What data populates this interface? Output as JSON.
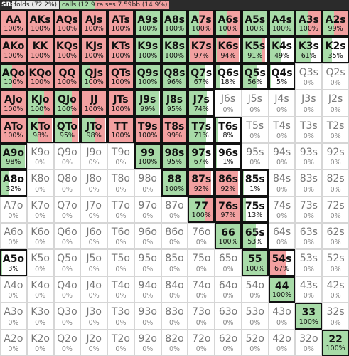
{
  "header": {
    "position": "SB:",
    "folds": "folds (72.2%)",
    "calls": "calls (12.9%)",
    "raises": "raises 7.59bb (14.9%)"
  },
  "colors": {
    "call": "#a8dba8",
    "raise": "#f2a0a0",
    "fold": "#ffffff",
    "border": "#d6d6d6",
    "highlight_border": "#111111"
  },
  "rows": [
    [
      {
        "hand": "AA",
        "label": "100%",
        "raise": 1,
        "call": 0
      },
      {
        "hand": "AKs",
        "label": "100%",
        "raise": 1,
        "call": 0
      },
      {
        "hand": "AQs",
        "label": "100%",
        "raise": 1,
        "call": 0
      },
      {
        "hand": "AJs",
        "label": "100%",
        "raise": 1,
        "call": 0
      },
      {
        "hand": "ATs",
        "label": "100%",
        "raise": 1,
        "call": 0
      },
      {
        "hand": "A9s",
        "label": "100%",
        "raise": 0,
        "call": 1
      },
      {
        "hand": "A8s",
        "label": "100%",
        "raise": 0,
        "call": 1
      },
      {
        "hand": "A7s",
        "label": "100%",
        "raise": 0.6,
        "call": 0.4
      },
      {
        "hand": "A6s",
        "label": "100%",
        "raise": 0.55,
        "call": 0.45
      },
      {
        "hand": "A5s",
        "label": "100%",
        "raise": 0,
        "call": 1
      },
      {
        "hand": "A4s",
        "label": "100%",
        "raise": 0,
        "call": 1
      },
      {
        "hand": "A3s",
        "label": "100%",
        "raise": 0.5,
        "call": 0.5
      },
      {
        "hand": "A2s",
        "label": "99%",
        "raise": 0.55,
        "call": 0.44
      }
    ],
    [
      {
        "hand": "AKo",
        "label": "100%",
        "raise": 1,
        "call": 0
      },
      {
        "hand": "KK",
        "label": "100%",
        "raise": 1,
        "call": 0
      },
      {
        "hand": "KQs",
        "label": "100%",
        "raise": 1,
        "call": 0
      },
      {
        "hand": "KJs",
        "label": "100%",
        "raise": 1,
        "call": 0
      },
      {
        "hand": "KTs",
        "label": "100%",
        "raise": 1,
        "call": 0
      },
      {
        "hand": "K9s",
        "label": "100%",
        "raise": 0,
        "call": 1
      },
      {
        "hand": "K8s",
        "label": "100%",
        "raise": 0,
        "call": 1
      },
      {
        "hand": "K7s",
        "label": "97%",
        "raise": 0.95,
        "call": 0.02
      },
      {
        "hand": "K6s",
        "label": "94%",
        "raise": 0.9,
        "call": 0.04
      },
      {
        "hand": "K5s",
        "label": "91%",
        "raise": 0.1,
        "call": 0.81
      },
      {
        "hand": "K4s",
        "label": "49%",
        "raise": 0,
        "call": 0.49
      },
      {
        "hand": "K3s",
        "label": "61%",
        "raise": 0,
        "call": 0.61
      },
      {
        "hand": "K2s",
        "label": "35%",
        "raise": 0,
        "call": 0.35
      }
    ],
    [
      {
        "hand": "AQo",
        "label": "100%",
        "raise": 0.55,
        "call": 0.45
      },
      {
        "hand": "KQo",
        "label": "100%",
        "raise": 1,
        "call": 0
      },
      {
        "hand": "QQ",
        "label": "100%",
        "raise": 1,
        "call": 0
      },
      {
        "hand": "QJs",
        "label": "100%",
        "raise": 0.65,
        "call": 0.35
      },
      {
        "hand": "QTs",
        "label": "100%",
        "raise": 1,
        "call": 0
      },
      {
        "hand": "Q9s",
        "label": "100%",
        "raise": 0,
        "call": 1
      },
      {
        "hand": "Q8s",
        "label": "96%",
        "raise": 0,
        "call": 0.96
      },
      {
        "hand": "Q7s",
        "label": "67%",
        "raise": 0,
        "call": 0.67
      },
      {
        "hand": "Q6s",
        "label": "18%",
        "raise": 0,
        "call": 0.18
      },
      {
        "hand": "Q5s",
        "label": "56%",
        "raise": 0,
        "call": 0.56
      },
      {
        "hand": "Q4s",
        "label": "5%",
        "raise": 0,
        "call": 0.05
      },
      {
        "hand": "Q3s",
        "label": "0%",
        "raise": 0,
        "call": 0
      },
      {
        "hand": "Q2s",
        "label": "0%",
        "raise": 0,
        "call": 0
      }
    ],
    [
      {
        "hand": "AJo",
        "label": "100%",
        "raise": 1,
        "call": 0
      },
      {
        "hand": "KJo",
        "label": "100%",
        "raise": 0.35,
        "call": 0.65
      },
      {
        "hand": "QJo",
        "label": "100%",
        "raise": 0.3,
        "call": 0.7
      },
      {
        "hand": "JJ",
        "label": "100%",
        "raise": 1,
        "call": 0
      },
      {
        "hand": "JTs",
        "label": "100%",
        "raise": 1,
        "call": 0
      },
      {
        "hand": "J9s",
        "label": "99%",
        "raise": 0,
        "call": 0.99
      },
      {
        "hand": "J8s",
        "label": "95%",
        "raise": 0,
        "call": 0.95
      },
      {
        "hand": "J7s",
        "label": "74%",
        "raise": 0,
        "call": 0.74
      },
      {
        "hand": "J6s",
        "label": "0%",
        "raise": 0,
        "call": 0
      },
      {
        "hand": "J5s",
        "label": "0%",
        "raise": 0,
        "call": 0
      },
      {
        "hand": "J4s",
        "label": "0%",
        "raise": 0,
        "call": 0
      },
      {
        "hand": "J3s",
        "label": "0%",
        "raise": 0,
        "call": 0
      },
      {
        "hand": "J2s",
        "label": "0%",
        "raise": 0,
        "call": 0
      }
    ],
    [
      {
        "hand": "ATo",
        "label": "100%",
        "raise": 1,
        "call": 0
      },
      {
        "hand": "KTo",
        "label": "98%",
        "raise": 0.6,
        "call": 0.38
      },
      {
        "hand": "QTo",
        "label": "95%",
        "raise": 0.25,
        "call": 0.7
      },
      {
        "hand": "JTo",
        "label": "98%",
        "raise": 0.45,
        "call": 0.53
      },
      {
        "hand": "TT",
        "label": "100%",
        "raise": 1,
        "call": 0
      },
      {
        "hand": "T9s",
        "label": "100%",
        "raise": 1,
        "call": 0
      },
      {
        "hand": "T8s",
        "label": "99%",
        "raise": 0.99,
        "call": 0
      },
      {
        "hand": "T7s",
        "label": "71%",
        "raise": 0,
        "call": 0.71
      },
      {
        "hand": "T6s",
        "label": "8%",
        "raise": 0,
        "call": 0.08
      },
      {
        "hand": "T5s",
        "label": "0%",
        "raise": 0,
        "call": 0
      },
      {
        "hand": "T4s",
        "label": "0%",
        "raise": 0,
        "call": 0
      },
      {
        "hand": "T3s",
        "label": "0%",
        "raise": 0,
        "call": 0
      },
      {
        "hand": "T2s",
        "label": "0%",
        "raise": 0,
        "call": 0
      }
    ],
    [
      {
        "hand": "A9o",
        "label": "98%",
        "raise": 0,
        "call": 0.98
      },
      {
        "hand": "K9o",
        "label": "0%",
        "raise": 0,
        "call": 0
      },
      {
        "hand": "Q9o",
        "label": "0%",
        "raise": 0,
        "call": 0
      },
      {
        "hand": "J9o",
        "label": "0%",
        "raise": 0,
        "call": 0
      },
      {
        "hand": "T9o",
        "label": "0%",
        "raise": 0,
        "call": 0
      },
      {
        "hand": "99",
        "label": "100%",
        "raise": 0,
        "call": 1
      },
      {
        "hand": "98s",
        "label": "95%",
        "raise": 0,
        "call": 0.95
      },
      {
        "hand": "97s",
        "label": "67%",
        "raise": 0,
        "call": 0.67
      },
      {
        "hand": "96s",
        "label": "1%",
        "raise": 0,
        "call": 0.01
      },
      {
        "hand": "95s",
        "label": "0%",
        "raise": 0,
        "call": 0
      },
      {
        "hand": "94s",
        "label": "0%",
        "raise": 0,
        "call": 0
      },
      {
        "hand": "93s",
        "label": "0%",
        "raise": 0,
        "call": 0
      },
      {
        "hand": "92s",
        "label": "0%",
        "raise": 0,
        "call": 0
      }
    ],
    [
      {
        "hand": "A8o",
        "label": "32%",
        "raise": 0,
        "call": 0.32
      },
      {
        "hand": "K8o",
        "label": "0%",
        "raise": 0,
        "call": 0
      },
      {
        "hand": "Q8o",
        "label": "0%",
        "raise": 0,
        "call": 0
      },
      {
        "hand": "J8o",
        "label": "0%",
        "raise": 0,
        "call": 0
      },
      {
        "hand": "T8o",
        "label": "0%",
        "raise": 0,
        "call": 0
      },
      {
        "hand": "98o",
        "label": "0%",
        "raise": 0,
        "call": 0
      },
      {
        "hand": "88",
        "label": "100%",
        "raise": 0,
        "call": 1
      },
      {
        "hand": "87s",
        "label": "92%",
        "raise": 0.92,
        "call": 0
      },
      {
        "hand": "86s",
        "label": "92%",
        "raise": 0.92,
        "call": 0
      },
      {
        "hand": "85s",
        "label": "1%",
        "raise": 0,
        "call": 0.01
      },
      {
        "hand": "84s",
        "label": "0%",
        "raise": 0,
        "call": 0
      },
      {
        "hand": "83s",
        "label": "0%",
        "raise": 0,
        "call": 0
      },
      {
        "hand": "82s",
        "label": "0%",
        "raise": 0,
        "call": 0
      }
    ],
    [
      {
        "hand": "A7o",
        "label": "0%",
        "raise": 0,
        "call": 0
      },
      {
        "hand": "K7o",
        "label": "0%",
        "raise": 0,
        "call": 0
      },
      {
        "hand": "Q7o",
        "label": "0%",
        "raise": 0,
        "call": 0
      },
      {
        "hand": "J7o",
        "label": "0%",
        "raise": 0,
        "call": 0
      },
      {
        "hand": "T7o",
        "label": "0%",
        "raise": 0,
        "call": 0
      },
      {
        "hand": "97o",
        "label": "0%",
        "raise": 0,
        "call": 0
      },
      {
        "hand": "87o",
        "label": "0%",
        "raise": 0,
        "call": 0
      },
      {
        "hand": "77",
        "label": "100%",
        "raise": 0.35,
        "call": 0.65
      },
      {
        "hand": "76s",
        "label": "97%",
        "raise": 0.97,
        "call": 0
      },
      {
        "hand": "75s",
        "label": "13%",
        "raise": 0,
        "call": 0.13
      },
      {
        "hand": "74s",
        "label": "0%",
        "raise": 0,
        "call": 0
      },
      {
        "hand": "73s",
        "label": "0%",
        "raise": 0,
        "call": 0
      },
      {
        "hand": "72s",
        "label": "0%",
        "raise": 0,
        "call": 0
      }
    ],
    [
      {
        "hand": "A6o",
        "label": "0%",
        "raise": 0,
        "call": 0
      },
      {
        "hand": "K6o",
        "label": "0%",
        "raise": 0,
        "call": 0
      },
      {
        "hand": "Q6o",
        "label": "0%",
        "raise": 0,
        "call": 0
      },
      {
        "hand": "J6o",
        "label": "0%",
        "raise": 0,
        "call": 0
      },
      {
        "hand": "T6o",
        "label": "0%",
        "raise": 0,
        "call": 0
      },
      {
        "hand": "96o",
        "label": "0%",
        "raise": 0,
        "call": 0
      },
      {
        "hand": "86o",
        "label": "0%",
        "raise": 0,
        "call": 0
      },
      {
        "hand": "76o",
        "label": "0%",
        "raise": 0,
        "call": 0
      },
      {
        "hand": "66",
        "label": "100%",
        "raise": 0,
        "call": 1
      },
      {
        "hand": "65s",
        "label": "53%",
        "raise": 0,
        "call": 0.53
      },
      {
        "hand": "64s",
        "label": "0%",
        "raise": 0,
        "call": 0
      },
      {
        "hand": "63s",
        "label": "0%",
        "raise": 0,
        "call": 0
      },
      {
        "hand": "62s",
        "label": "0%",
        "raise": 0,
        "call": 0
      }
    ],
    [
      {
        "hand": "A5o",
        "label": "3%",
        "raise": 0,
        "call": 0.03
      },
      {
        "hand": "K5o",
        "label": "0%",
        "raise": 0,
        "call": 0
      },
      {
        "hand": "Q5o",
        "label": "0%",
        "raise": 0,
        "call": 0
      },
      {
        "hand": "J5o",
        "label": "0%",
        "raise": 0,
        "call": 0
      },
      {
        "hand": "T5o",
        "label": "0%",
        "raise": 0,
        "call": 0
      },
      {
        "hand": "95o",
        "label": "0%",
        "raise": 0,
        "call": 0
      },
      {
        "hand": "85o",
        "label": "0%",
        "raise": 0,
        "call": 0
      },
      {
        "hand": "75o",
        "label": "0%",
        "raise": 0,
        "call": 0
      },
      {
        "hand": "65o",
        "label": "0%",
        "raise": 0,
        "call": 0
      },
      {
        "hand": "55",
        "label": "100%",
        "raise": 0,
        "call": 1
      },
      {
        "hand": "54s",
        "label": "67%",
        "raise": 0.67,
        "call": 0
      },
      {
        "hand": "53s",
        "label": "0%",
        "raise": 0,
        "call": 0
      },
      {
        "hand": "52s",
        "label": "0%",
        "raise": 0,
        "call": 0
      }
    ],
    [
      {
        "hand": "A4o",
        "label": "0%",
        "raise": 0,
        "call": 0
      },
      {
        "hand": "K4o",
        "label": "0%",
        "raise": 0,
        "call": 0
      },
      {
        "hand": "Q4o",
        "label": "0%",
        "raise": 0,
        "call": 0
      },
      {
        "hand": "J4o",
        "label": "0%",
        "raise": 0,
        "call": 0
      },
      {
        "hand": "T4o",
        "label": "0%",
        "raise": 0,
        "call": 0
      },
      {
        "hand": "94o",
        "label": "0%",
        "raise": 0,
        "call": 0
      },
      {
        "hand": "84o",
        "label": "0%",
        "raise": 0,
        "call": 0
      },
      {
        "hand": "74o",
        "label": "0%",
        "raise": 0,
        "call": 0
      },
      {
        "hand": "64o",
        "label": "0%",
        "raise": 0,
        "call": 0
      },
      {
        "hand": "54o",
        "label": "0%",
        "raise": 0,
        "call": 0
      },
      {
        "hand": "44",
        "label": "100%",
        "raise": 0,
        "call": 1
      },
      {
        "hand": "43s",
        "label": "0%",
        "raise": 0,
        "call": 0
      },
      {
        "hand": "42s",
        "label": "0%",
        "raise": 0,
        "call": 0
      }
    ],
    [
      {
        "hand": "A3o",
        "label": "0%",
        "raise": 0,
        "call": 0
      },
      {
        "hand": "K3o",
        "label": "0%",
        "raise": 0,
        "call": 0
      },
      {
        "hand": "Q3o",
        "label": "0%",
        "raise": 0,
        "call": 0
      },
      {
        "hand": "J3o",
        "label": "0%",
        "raise": 0,
        "call": 0
      },
      {
        "hand": "T3o",
        "label": "0%",
        "raise": 0,
        "call": 0
      },
      {
        "hand": "93o",
        "label": "0%",
        "raise": 0,
        "call": 0
      },
      {
        "hand": "83o",
        "label": "0%",
        "raise": 0,
        "call": 0
      },
      {
        "hand": "73o",
        "label": "0%",
        "raise": 0,
        "call": 0
      },
      {
        "hand": "63o",
        "label": "0%",
        "raise": 0,
        "call": 0
      },
      {
        "hand": "53o",
        "label": "0%",
        "raise": 0,
        "call": 0
      },
      {
        "hand": "43o",
        "label": "0%",
        "raise": 0,
        "call": 0
      },
      {
        "hand": "33",
        "label": "100%",
        "raise": 0,
        "call": 1
      },
      {
        "hand": "32s",
        "label": "0%",
        "raise": 0,
        "call": 0
      }
    ],
    [
      {
        "hand": "A2o",
        "label": "0%",
        "raise": 0,
        "call": 0
      },
      {
        "hand": "K2o",
        "label": "0%",
        "raise": 0,
        "call": 0
      },
      {
        "hand": "Q2o",
        "label": "0%",
        "raise": 0,
        "call": 0
      },
      {
        "hand": "J2o",
        "label": "0%",
        "raise": 0,
        "call": 0
      },
      {
        "hand": "T2o",
        "label": "0%",
        "raise": 0,
        "call": 0
      },
      {
        "hand": "92o",
        "label": "0%",
        "raise": 0,
        "call": 0
      },
      {
        "hand": "82o",
        "label": "0%",
        "raise": 0,
        "call": 0
      },
      {
        "hand": "72o",
        "label": "0%",
        "raise": 0,
        "call": 0
      },
      {
        "hand": "62o",
        "label": "0%",
        "raise": 0,
        "call": 0
      },
      {
        "hand": "52o",
        "label": "0%",
        "raise": 0,
        "call": 0
      },
      {
        "hand": "42o",
        "label": "0%",
        "raise": 0,
        "call": 0
      },
      {
        "hand": "32o",
        "label": "0%",
        "raise": 0,
        "call": 0
      },
      {
        "hand": "22",
        "label": "100%",
        "raise": 0,
        "call": 1
      }
    ]
  ],
  "highlighted": [
    "AA",
    "AKs",
    "AQs",
    "AJs",
    "ATs",
    "A9s",
    "A8s",
    "A7s",
    "A6s",
    "A5s",
    "A4s",
    "A3s",
    "A2s",
    "AKo",
    "KK",
    "KQs",
    "KJs",
    "KTs",
    "K9s",
    "K8s",
    "K7s",
    "K6s",
    "K5s",
    "K4s",
    "K3s",
    "K2s",
    "AQo",
    "KQo",
    "QQ",
    "QJs",
    "QTs",
    "Q9s",
    "Q8s",
    "Q7s",
    "Q6s",
    "Q5s",
    "Q4s",
    "AJo",
    "KJo",
    "QJo",
    "JJ",
    "JTs",
    "J9s",
    "J8s",
    "J7s",
    "ATo",
    "KTo",
    "QTo",
    "JTo",
    "TT",
    "T9s",
    "T8s",
    "T7s",
    "T6s",
    "A9o",
    "99",
    "98s",
    "97s",
    "96s",
    "A8o",
    "88",
    "87s",
    "86s",
    "85s",
    "77",
    "76s",
    "75s",
    "66",
    "65s",
    "A5o",
    "55",
    "54s",
    "44",
    "33",
    "22"
  ]
}
